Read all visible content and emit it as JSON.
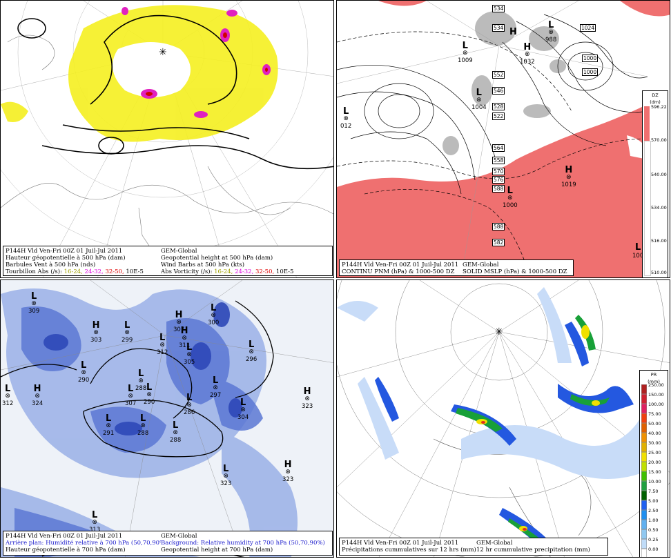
{
  "panels": {
    "p1": {
      "caption": {
        "l1_left": "P144H Vld Ven-Fri 00Z 01 Juil-Jul 2011",
        "l1_right": "GEM-Global",
        "l2_left": "Hauteur géopotentielle à 500 hPa (dam)",
        "l2_right": "Geopotential height at 500 hPa (dam)",
        "l3_left": "Barbules Vent à 500 hPa (nds)",
        "l3_right": "Wind Barbs at 500 hPa  (kts)",
        "l4_left_label": "Tourbillon Abs (/s):",
        "l4_right_label": "Abs Vorticity (/s):",
        "ranges": [
          "16-24,",
          "24-32,",
          "32-50,"
        ],
        "unit": "10E-5"
      },
      "range_colors": [
        "#a0a000",
        "#e000e0",
        "#e00000"
      ]
    },
    "p2": {
      "caption": {
        "l1_left": "P144H Vld Ven-Fri 00Z 01 Juil-Jul 2011",
        "l1_right": "GEM-Global",
        "l2_left": "CONTINU PNM  (hPa) & 1000-500 DZ",
        "l2_right": "SOLID  MSLP (hPa) & 1000-500 DZ"
      },
      "legend": {
        "title1": "DZ",
        "title2": "(dm)",
        "ticks": [
          "596.22",
          "570.00",
          "540.00",
          "534.00",
          "516.00",
          "510.00"
        ]
      },
      "systems": [
        {
          "type": "H",
          "value": "1024"
        },
        {
          "type": "L",
          "value": "1009"
        },
        {
          "type": "L",
          "value": "1004"
        },
        {
          "type": "H",
          "value": "1032"
        },
        {
          "type": "L",
          "value": "012"
        },
        {
          "type": "H",
          "value": "1019"
        },
        {
          "type": "L",
          "value": "1000"
        },
        {
          "type": "L",
          "value": "100"
        },
        {
          "type": "L",
          "value": "988"
        }
      ],
      "box_labels": [
        "534",
        "534",
        "552",
        "546",
        "528",
        "522",
        "564",
        "558",
        "570",
        "576",
        "588",
        "588",
        "582",
        "1024",
        "1000",
        "1000"
      ]
    },
    "p3": {
      "caption": {
        "l1_left": "P144H Vld Ven-Fri 00Z 01 Juil-Jul 2011",
        "l1_right": "GEM-Global",
        "l2_left": "Arrière plan: Humidité relative à 700 hPa (50,70,90%)",
        "l2_right": "Background: Relative humidity at 700 hPa (50,70,90%)",
        "l3_left": "Hauteur géopotentielle à 700 hPa (dam)",
        "l3_right": "Geopotential height at 700 hPa (dam)"
      },
      "systems": [
        {
          "type": "L",
          "value": "309"
        },
        {
          "type": "H",
          "value": "303"
        },
        {
          "type": "L",
          "value": "299"
        },
        {
          "type": "L",
          "value": "312"
        },
        {
          "type": "H",
          "value": "307"
        },
        {
          "type": "H",
          "value": "311"
        },
        {
          "type": "L",
          "value": "305"
        },
        {
          "type": "L",
          "value": "300"
        },
        {
          "type": "L",
          "value": "296"
        },
        {
          "type": "L",
          "value": "290"
        },
        {
          "type": "L",
          "value": "288"
        },
        {
          "type": "L",
          "value": "312"
        },
        {
          "type": "H",
          "value": "324"
        },
        {
          "type": "L",
          "value": "307"
        },
        {
          "type": "L",
          "value": "290"
        },
        {
          "type": "L",
          "value": "286"
        },
        {
          "type": "L",
          "value": "297"
        },
        {
          "type": "L",
          "value": "291"
        },
        {
          "type": "L",
          "value": "288"
        },
        {
          "type": "L",
          "value": "288"
        },
        {
          "type": "L",
          "value": "304"
        },
        {
          "type": "H",
          "value": "323"
        },
        {
          "type": "L",
          "value": "323"
        },
        {
          "type": "H",
          "value": "323"
        },
        {
          "type": "L",
          "value": "313"
        }
      ]
    },
    "p4": {
      "caption": {
        "l1_left": "P144H Vld Ven-Fri 00Z 01 Juil-Jul 2011",
        "l1_right": "GEM-Global",
        "l2_left": "Précipitations cummulatives sur 12 hrs (mm)",
        "l2_right": "12 hr cummulative precipitation      (mm)"
      },
      "legend": {
        "title1": "PR",
        "title2": "(mm)",
        "ticks": [
          "250.00",
          "150.00",
          "100.00",
          "75.00",
          "50.00",
          "40.00",
          "30.00",
          "25.00",
          "20.00",
          "15.00",
          "10.00",
          "7.50",
          "5.00",
          "2.50",
          "1.00",
          "0.50",
          "0.25",
          "0.00"
        ],
        "colors": [
          "#b02020",
          "#d02030",
          "#e02060",
          "#f04010",
          "#e06000",
          "#f09000",
          "#e0b000",
          "#f0e000",
          "#c0e000",
          "#40c000",
          "#20a040",
          "#006000",
          "#2060f0",
          "#2090f0",
          "#60b0f0",
          "#90c8f0",
          "#c0dcf8",
          "#ffffff"
        ]
      }
    }
  }
}
